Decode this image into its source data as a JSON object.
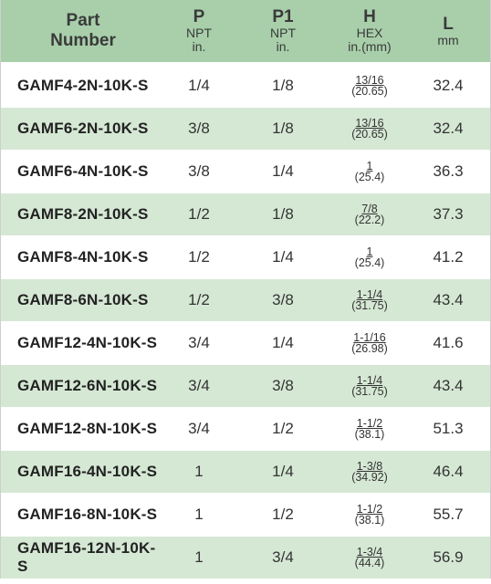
{
  "header": {
    "part": [
      "Part",
      "Number"
    ],
    "p": {
      "main": "P",
      "sub1": "NPT",
      "sub2": "in."
    },
    "p1": {
      "main": "P1",
      "sub1": "NPT",
      "sub2": "in."
    },
    "h": {
      "main": "H",
      "sub1": "HEX",
      "sub2": "in.(mm)"
    },
    "l": {
      "main": "L",
      "sub1": "mm"
    }
  },
  "rows": [
    {
      "part": "GAMF4-2N-10K-S",
      "p": "1/4",
      "p1": "1/8",
      "hex_in": "13/16",
      "hex_mm": "(20.65)",
      "l": "32.4"
    },
    {
      "part": "GAMF6-2N-10K-S",
      "p": "3/8",
      "p1": "1/8",
      "hex_in": "13/16",
      "hex_mm": "(20.65)",
      "l": "32.4"
    },
    {
      "part": "GAMF6-4N-10K-S",
      "p": "3/8",
      "p1": "1/4",
      "hex_in": "1",
      "hex_mm": "(25.4)",
      "l": "36.3"
    },
    {
      "part": "GAMF8-2N-10K-S",
      "p": "1/2",
      "p1": "1/8",
      "hex_in": "7/8",
      "hex_mm": "(22.2)",
      "l": "37.3"
    },
    {
      "part": "GAMF8-4N-10K-S",
      "p": "1/2",
      "p1": "1/4",
      "hex_in": "1",
      "hex_mm": "(25.4)",
      "l": "41.2"
    },
    {
      "part": "GAMF8-6N-10K-S",
      "p": "1/2",
      "p1": "3/8",
      "hex_in": "1-1/4",
      "hex_mm": "(31.75)",
      "l": "43.4"
    },
    {
      "part": "GAMF12-4N-10K-S",
      "p": "3/4",
      "p1": "1/4",
      "hex_in": "1-1/16",
      "hex_mm": "(26.98)",
      "l": "41.6"
    },
    {
      "part": "GAMF12-6N-10K-S",
      "p": "3/4",
      "p1": "3/8",
      "hex_in": "1-1/4",
      "hex_mm": "(31.75)",
      "l": "43.4"
    },
    {
      "part": "GAMF12-8N-10K-S",
      "p": "3/4",
      "p1": "1/2",
      "hex_in": "1-1/2",
      "hex_mm": "(38.1)",
      "l": "51.3"
    },
    {
      "part": "GAMF16-4N-10K-S",
      "p": "1",
      "p1": "1/4",
      "hex_in": "1-3/8",
      "hex_mm": "(34.92)",
      "l": "46.4"
    },
    {
      "part": "GAMF16-8N-10K-S",
      "p": "1",
      "p1": "1/2",
      "hex_in": "1-1/2",
      "hex_mm": "(38.1)",
      "l": "55.7"
    },
    {
      "part": "GAMF16-12N-10K-S",
      "p": "1",
      "p1": "3/4",
      "hex_in": "1-3/4",
      "hex_mm": "(44.4)",
      "l": "56.9"
    }
  ],
  "colors": {
    "header_bg": "#a8cfaa",
    "alt_row_bg": "#d5e8d4",
    "row_bg": "#ffffff"
  }
}
